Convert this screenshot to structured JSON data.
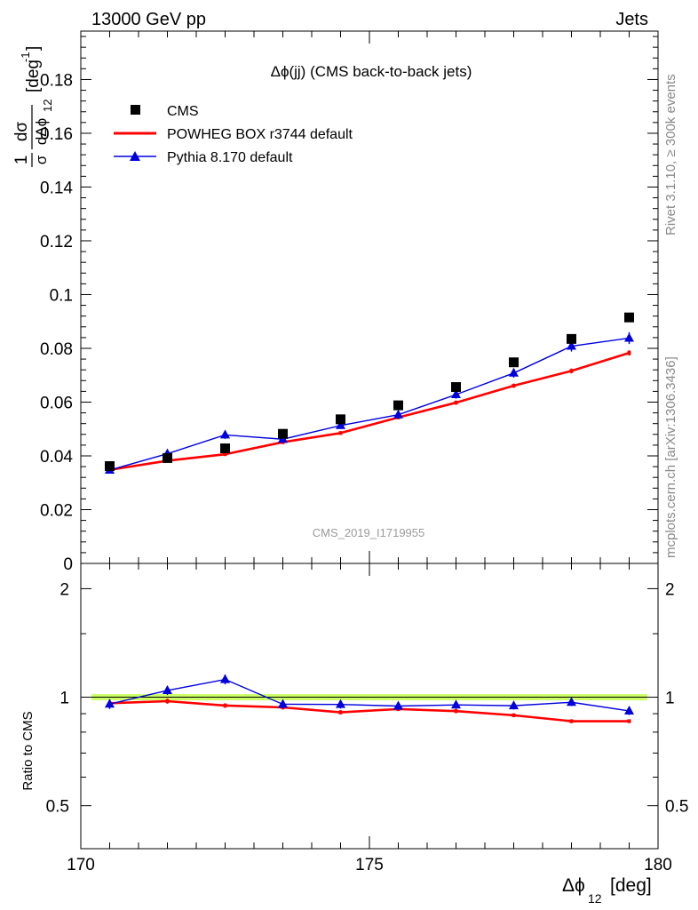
{
  "header": {
    "left": "13000 GeV pp",
    "right": "Jets"
  },
  "side_labels": {
    "rivet": "Rivet 3.1.10, ≥ 300k events",
    "mcplots": "mcplots.cern.ch [arXiv:1306.3436]"
  },
  "watermark": "CMS_2019_I1719955",
  "colors": {
    "cms": "#000000",
    "powheg": "#ff0000",
    "pythia": "#0000dd",
    "band": "#ccff66"
  },
  "chart_data": [
    {
      "type": "scatter",
      "title": "Δϕ(jj) (CMS back-to-back jets)",
      "ylabel_parts": {
        "frac_num": "1",
        "frac_den": "σ",
        "d_num": "dσ",
        "d_den": "dΔϕ",
        "sub": "12",
        "unit": "[deg",
        "unit_sup": "-1",
        "unit_end": "]"
      },
      "xlabel_parts": {
        "sym": "Δϕ",
        "sub": "12",
        "unit": "[deg]"
      },
      "xlim": [
        170,
        180
      ],
      "ylim": [
        0,
        0.198
      ],
      "yticks": [
        0,
        0.02,
        0.04,
        0.06,
        0.08,
        0.1,
        0.12,
        0.14,
        0.16,
        0.18
      ],
      "ytick_labels": [
        "0",
        "0.02",
        "0.04",
        "0.06",
        "0.08",
        "0.1",
        "0.12",
        "0.14",
        "0.16",
        "0.18"
      ],
      "xticks": [
        170,
        175,
        180
      ],
      "xtick_labels": [
        "170",
        "175",
        "180"
      ],
      "x": [
        170.5,
        171.5,
        172.5,
        173.5,
        174.5,
        175.5,
        176.5,
        177.5,
        178.5,
        179.5
      ],
      "legend": [
        "CMS",
        "POWHEG BOX r3744 default",
        "Pythia 8.170 default"
      ],
      "legend_position": "top-left",
      "series": [
        {
          "name": "CMS",
          "style": "markers",
          "values": [
            0.0362,
            0.0392,
            0.0428,
            0.0482,
            0.0536,
            0.0588,
            0.0656,
            0.0748,
            0.0835,
            0.0915
          ]
        },
        {
          "name": "POWHEG BOX r3744 default",
          "style": "line",
          "values": [
            0.0348,
            0.0382,
            0.0406,
            0.0451,
            0.0485,
            0.0543,
            0.0598,
            0.0661,
            0.0716,
            0.0783
          ],
          "errors": [
            0.0006,
            0.0006,
            0.0006,
            0.0007,
            0.0007,
            0.0007,
            0.0008,
            0.0008,
            0.0009,
            0.001
          ]
        },
        {
          "name": "Pythia 8.170 default",
          "style": "line-triangles",
          "values": [
            0.0347,
            0.0408,
            0.0478,
            0.0462,
            0.0513,
            0.0553,
            0.0628,
            0.0708,
            0.0808,
            0.0838
          ],
          "errors": [
            0.001,
            0.0012,
            0.0015,
            0.0012,
            0.0013,
            0.0013,
            0.0015,
            0.0017,
            0.002,
            0.0022
          ]
        }
      ]
    },
    {
      "type": "line",
      "ylabel": "Ratio to CMS",
      "xlim": [
        170,
        180
      ],
      "ylim": [
        0.38,
        2.35
      ],
      "ylog": true,
      "yticks": [
        0.5,
        1,
        2
      ],
      "ytick_labels": [
        "0.5",
        "1",
        "2"
      ],
      "x": [
        170.5,
        171.5,
        172.5,
        173.5,
        174.5,
        175.5,
        176.5,
        177.5,
        178.5,
        179.5
      ],
      "reference_band": [
        0.98,
        1.02
      ],
      "series": [
        {
          "name": "POWHEG BOX r3744 default",
          "values": [
            0.962,
            0.975,
            0.948,
            0.937,
            0.908,
            0.927,
            0.915,
            0.891,
            0.858,
            0.858
          ],
          "errors": [
            0.016,
            0.016,
            0.014,
            0.013,
            0.013,
            0.012,
            0.012,
            0.011,
            0.011,
            0.011
          ]
        },
        {
          "name": "Pythia 8.170 default",
          "values": [
            0.957,
            1.044,
            1.12,
            0.956,
            0.955,
            0.945,
            0.952,
            0.947,
            0.968,
            0.916
          ],
          "errors": [
            0.03,
            0.03,
            0.035,
            0.025,
            0.025,
            0.024,
            0.024,
            0.023,
            0.023,
            0.024
          ]
        }
      ]
    }
  ]
}
